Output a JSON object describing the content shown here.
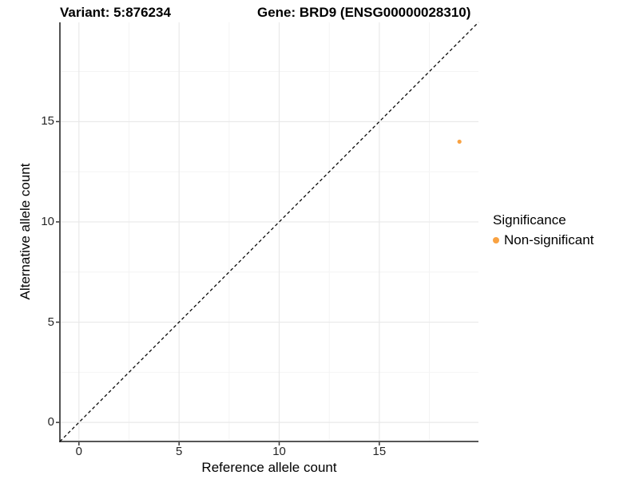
{
  "chart_data": {
    "type": "scatter",
    "title_left": "Variant: 5:876234",
    "title_right": "Gene: BRD9 (ENSG00000028310)",
    "xlabel": "Reference allele count",
    "ylabel": "Alternative allele count",
    "xlim": [
      -0.95,
      19.95
    ],
    "ylim": [
      -0.95,
      19.95
    ],
    "x_major_ticks": [
      0,
      5,
      10,
      15
    ],
    "y_major_ticks": [
      0,
      5,
      10,
      15
    ],
    "x_gridlines_major": [
      0,
      5,
      10,
      15
    ],
    "x_gridlines_minor": [
      2.5,
      7.5,
      12.5,
      17.5
    ],
    "y_gridlines_major": [
      0,
      5,
      10,
      15
    ],
    "y_gridlines_minor": [
      2.5,
      7.5,
      12.5,
      17.5
    ],
    "grid": true,
    "reference_line": {
      "type": "identity",
      "style": "dashed",
      "slope": 1,
      "intercept": 0
    },
    "series": [
      {
        "name": "Non-significant",
        "color": "#F9A242",
        "points": [
          {
            "x": 19,
            "y": 14
          }
        ]
      }
    ],
    "legend": {
      "position": "right",
      "title": "Significance",
      "items": [
        {
          "label": "Non-significant",
          "color": "#F9A242"
        }
      ]
    },
    "colors": {
      "point": "#F9A242",
      "grid_major": "#e9e9e9",
      "grid_minor": "#f4f4f4",
      "axis_line": "#3f3f3f",
      "tick": "#333333",
      "reference_line": "#0a0a0a"
    }
  }
}
